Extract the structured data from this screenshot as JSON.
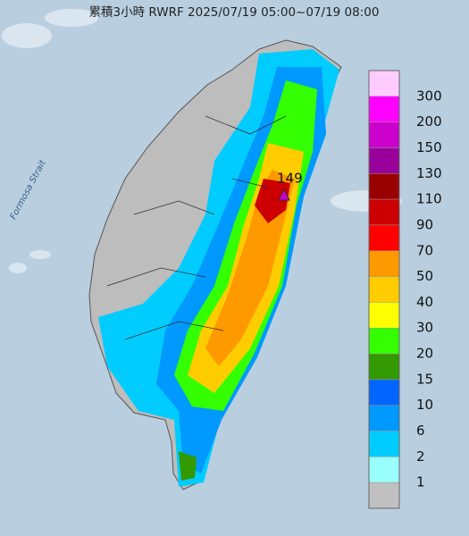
{
  "title": "累積3小時 RWRF 2025/07/19 05:00~07/19 08:00",
  "sea_label": "Formosa Strait",
  "max_label": "149",
  "legend": {
    "labels": [
      300,
      200,
      150,
      130,
      110,
      90,
      70,
      50,
      40,
      30,
      20,
      15,
      10,
      6,
      2,
      1
    ],
    "colors": [
      "#ffccff",
      "#ff00ff",
      "#cc00cc",
      "#990099",
      "#990000",
      "#cc0000",
      "#ff0000",
      "#ff9900",
      "#ffcc00",
      "#ffff00",
      "#33ff00",
      "#339900",
      "#0066ff",
      "#0099ff",
      "#00ccff",
      "#99ffff",
      "#c0c0c0"
    ]
  }
}
